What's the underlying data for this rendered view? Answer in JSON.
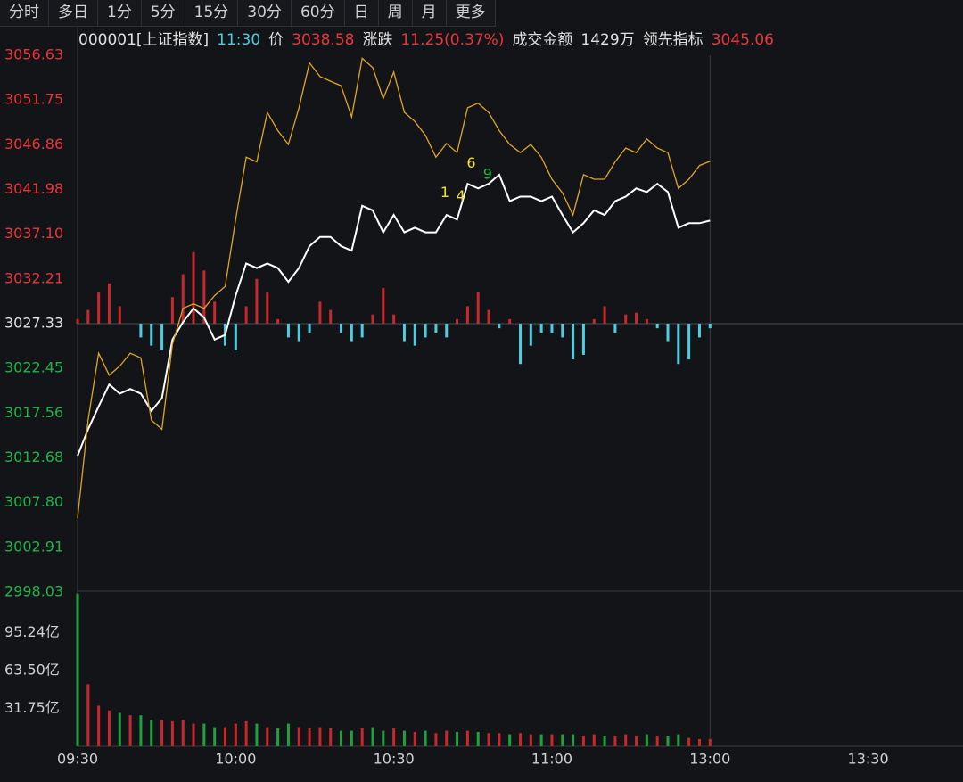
{
  "toolbar": {
    "tabs": [
      "分时",
      "多日",
      "1分",
      "5分",
      "15分",
      "30分",
      "60分",
      "日",
      "周",
      "月",
      "更多"
    ]
  },
  "header": {
    "code": "000001[上证指数]",
    "time": "11:30",
    "price_label": "价",
    "price": "3038.58",
    "change_label": "涨跌",
    "change": "11.25(0.37%)",
    "amount_label": "成交金额",
    "amount": "1429万",
    "lead_label": "领先指标",
    "lead": "3045.06"
  },
  "chart_data": [
    {
      "type": "line",
      "x": [
        0,
        2,
        4,
        6,
        8,
        10,
        12,
        14,
        16,
        18,
        20,
        22,
        24,
        26,
        28,
        30,
        32,
        34,
        36,
        38,
        40,
        42,
        44,
        46,
        48,
        50,
        52,
        54,
        56,
        58,
        60,
        62,
        64,
        66,
        68,
        70,
        72,
        74,
        76,
        78,
        80,
        82,
        84,
        86,
        88,
        90,
        92,
        94,
        96,
        98,
        100,
        102,
        104,
        106,
        108,
        110,
        112,
        114,
        116,
        118,
        120
      ],
      "xlim": [
        0,
        168
      ],
      "xticks": [
        {
          "value": 0,
          "label": "09:30"
        },
        {
          "value": 30,
          "label": "10:00"
        },
        {
          "value": 60,
          "label": "10:30"
        },
        {
          "value": 90,
          "label": "11:00"
        },
        {
          "value": 120,
          "label": "13:00"
        },
        {
          "value": 150,
          "label": "13:30"
        }
      ],
      "ylim": [
        2998.03,
        3056.63
      ],
      "yticks": [
        3056.63,
        3051.75,
        3046.86,
        3041.98,
        {
          "value": 3037.1,
          "label": "3037.10"
        },
        3032.21,
        3027.33,
        3022.45,
        3017.56,
        3012.68,
        {
          "value": 3007.8,
          "label": "3007.80"
        },
        3002.91,
        2998.03
      ],
      "baseline": 3027.33,
      "series": [
        {
          "color": "#ffffff",
          "values": [
            3012.9,
            3015.8,
            3018.3,
            3020.7,
            3019.7,
            3020.2,
            3019.7,
            3017.8,
            3019.2,
            3025.6,
            3027.5,
            3029.0,
            3028.0,
            3025.6,
            3026.1,
            3030.4,
            3033.9,
            3033.4,
            3033.9,
            3033.4,
            3031.9,
            3033.4,
            3035.8,
            3036.8,
            3036.8,
            3035.8,
            3035.3,
            3040.2,
            3039.7,
            3037.3,
            3039.2,
            3037.3,
            3037.8,
            3037.3,
            3037.3,
            3039.2,
            3038.7,
            3042.6,
            3042.1,
            3042.6,
            3043.6,
            3040.7,
            3041.2,
            3041.2,
            3040.7,
            3041.2,
            3039.2,
            3037.3,
            3038.3,
            3039.7,
            3039.2,
            3040.7,
            3041.2,
            3042.1,
            3041.7,
            3042.6,
            3041.7,
            3037.8,
            3038.3,
            3038.3,
            3038.58
          ]
        },
        {
          "color": "#e0a526",
          "values": [
            3006.1,
            3016.8,
            3024.1,
            3021.7,
            3022.7,
            3024.1,
            3023.6,
            3016.8,
            3015.8,
            3025.1,
            3029.0,
            3029.5,
            3029.0,
            3030.4,
            3031.4,
            3038.7,
            3045.5,
            3045.0,
            3050.4,
            3048.4,
            3046.9,
            3050.9,
            3055.8,
            3054.3,
            3053.8,
            3053.3,
            3049.9,
            3056.3,
            3055.3,
            3051.9,
            3054.8,
            3050.4,
            3049.4,
            3047.9,
            3045.5,
            3047.0,
            3046.0,
            3050.9,
            3051.4,
            3050.4,
            3048.4,
            3046.9,
            3046.0,
            3046.9,
            3045.5,
            3043.1,
            3041.6,
            3039.2,
            3043.6,
            3043.1,
            3043.1,
            3045.0,
            3046.5,
            3046.0,
            3047.5,
            3046.5,
            3046.0,
            3042.1,
            3043.1,
            3044.6,
            3045.06
          ]
        },
        {
          "type": "bar",
          "color_up": "#c8282c",
          "color_down": "#4ecde0",
          "values": [
            0.5,
            1.5,
            3.4,
            4.4,
            1.9,
            0,
            -1.5,
            -2.4,
            -2.9,
            2.9,
            5.4,
            7.8,
            5.8,
            2.4,
            -2.4,
            -2.9,
            1.9,
            4.9,
            3.4,
            0.5,
            -1.5,
            -1.9,
            -1.0,
            2.4,
            1.5,
            -1.0,
            -1.9,
            -1.5,
            1.0,
            3.9,
            1.0,
            -1.9,
            -2.4,
            -1.5,
            -1.0,
            -1.5,
            0.5,
            1.9,
            3.4,
            1.5,
            -0.5,
            0.5,
            -4.4,
            -2.4,
            -1.0,
            -1.0,
            -1.5,
            -3.9,
            -3.4,
            0.5,
            1.9,
            -1.0,
            1.0,
            1.2,
            0.5,
            -0.5,
            -1.9,
            -4.4,
            -3.9,
            -1.5,
            -0.5
          ]
        }
      ],
      "annotations": [
        {
          "text": "1",
          "x": 69.7,
          "y": 3041.6,
          "color": "#f0e030"
        },
        {
          "text": "4",
          "x": 72.7,
          "y": 3041.2,
          "color": "#f0e030"
        },
        {
          "text": "6",
          "x": 74.7,
          "y": 3044.8,
          "color": "#f0e030"
        },
        {
          "text": "9",
          "x": 77.8,
          "y": 3043.6,
          "color": "#21b34a"
        }
      ]
    },
    {
      "type": "bar",
      "x": [
        0,
        2,
        4,
        6,
        8,
        10,
        12,
        14,
        16,
        18,
        20,
        22,
        24,
        26,
        28,
        30,
        32,
        34,
        36,
        38,
        40,
        42,
        44,
        46,
        48,
        50,
        52,
        54,
        56,
        58,
        60,
        62,
        64,
        66,
        68,
        70,
        72,
        74,
        76,
        78,
        80,
        82,
        84,
        86,
        88,
        90,
        92,
        94,
        96,
        98,
        100,
        102,
        104,
        106,
        108,
        110,
        112,
        114,
        116,
        118,
        120
      ],
      "xlim": [
        0,
        168
      ],
      "ylim": [
        0,
        130
      ],
      "yticks": [
        {
          "value": 95.24,
          "label": "95.24亿"
        },
        {
          "value": 63.5,
          "label": "63.50亿"
        },
        {
          "value": 31.75,
          "label": "31.75亿"
        }
      ],
      "color_up": "#c8282c",
      "color_down": "#21a040",
      "values": [
        128,
        52,
        34,
        30,
        28,
        26,
        26,
        22,
        22,
        21,
        22,
        19,
        19,
        16,
        16,
        19,
        21,
        19,
        16,
        15,
        19,
        16,
        15,
        16,
        15,
        13,
        13,
        15,
        16,
        13,
        15,
        13,
        12,
        13,
        11,
        13,
        12,
        13,
        12,
        11,
        11,
        10,
        11,
        10,
        10,
        10,
        10,
        10,
        9,
        10,
        9,
        9,
        10,
        9,
        10,
        9,
        9,
        10,
        7,
        6,
        6
      ]
    }
  ]
}
